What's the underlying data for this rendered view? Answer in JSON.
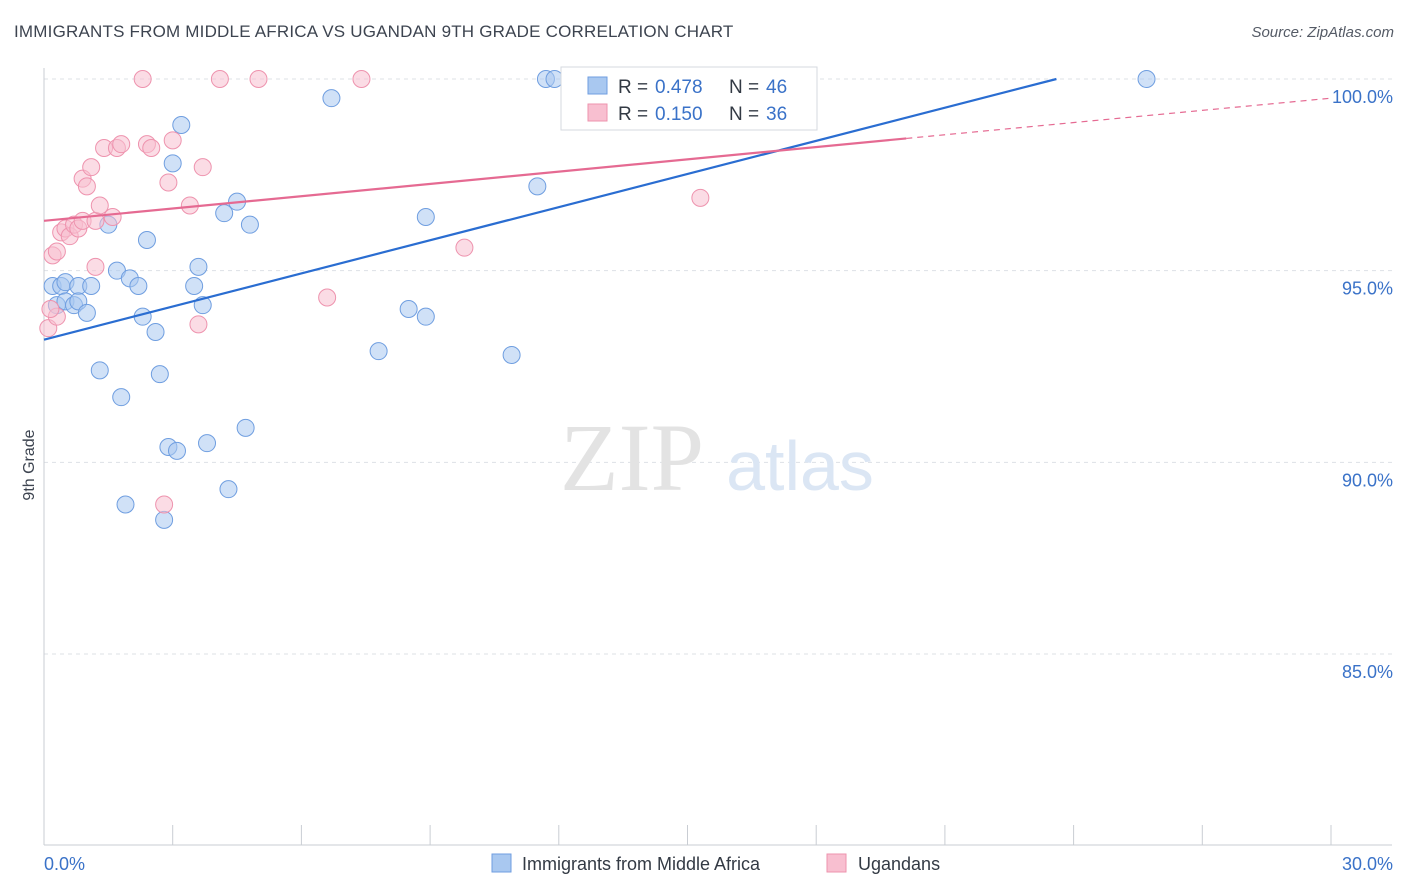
{
  "title": "IMMIGRANTS FROM MIDDLE AFRICA VS UGANDAN 9TH GRADE CORRELATION CHART",
  "source": "Source: ZipAtlas.com",
  "watermark": {
    "zip": "ZIP",
    "atlas": "atlas"
  },
  "colors": {
    "blue": "#a9c8f0",
    "blue_stroke": "#6f9ee0",
    "blue_line": "#2a6dd1",
    "pink": "#f8bfd0",
    "pink_stroke": "#ee93ae",
    "pink_line": "#e56a92",
    "value_text": "#3a72c8",
    "grid": "#dde1e6"
  },
  "legend_stats": {
    "blue_r_label": "R = ",
    "blue_r": "0.478",
    "blue_n_label": "N = ",
    "blue_n": "46",
    "pink_r_label": "R = ",
    "pink_r": "0.150",
    "pink_n_label": "N = ",
    "pink_n": "36"
  },
  "chart_data": {
    "type": "scatter",
    "title": "IMMIGRANTS FROM MIDDLE AFRICA VS UGANDAN 9TH GRADE CORRELATION CHART",
    "xlabel": "",
    "ylabel": "9th Grade",
    "xlim": [
      0,
      30
    ],
    "ylim": [
      80.5,
      100.5
    ],
    "x_tick_labels": [
      "0.0%",
      "30.0%"
    ],
    "y_ticks": [
      85,
      90,
      95,
      100
    ],
    "y_tick_labels": [
      "85.0%",
      "90.0%",
      "95.0%",
      "100.0%"
    ],
    "grid": true,
    "legend_position": "bottom-center",
    "series": [
      {
        "name": "Immigrants from Middle Africa",
        "color": "#a9c8f0",
        "r": 0.478,
        "n": 46,
        "trend": {
          "x0": 0,
          "y0": 93.2,
          "x1": 23.6,
          "y1": 100.0,
          "dashed_to": null
        },
        "points": [
          [
            0.2,
            94.6
          ],
          [
            0.3,
            94.1
          ],
          [
            0.4,
            94.6
          ],
          [
            0.5,
            94.7
          ],
          [
            0.5,
            94.2
          ],
          [
            0.7,
            94.1
          ],
          [
            0.8,
            94.6
          ],
          [
            0.8,
            94.2
          ],
          [
            1.0,
            93.9
          ],
          [
            1.1,
            94.6
          ],
          [
            1.3,
            92.4
          ],
          [
            1.5,
            96.2
          ],
          [
            1.7,
            95.0
          ],
          [
            1.8,
            91.7
          ],
          [
            1.9,
            88.9
          ],
          [
            2.0,
            94.8
          ],
          [
            2.2,
            94.6
          ],
          [
            2.3,
            93.8
          ],
          [
            2.4,
            95.8
          ],
          [
            2.6,
            93.4
          ],
          [
            2.7,
            92.3
          ],
          [
            2.8,
            88.5
          ],
          [
            2.9,
            90.4
          ],
          [
            3.0,
            97.8
          ],
          [
            3.1,
            90.3
          ],
          [
            3.2,
            98.8
          ],
          [
            3.5,
            94.6
          ],
          [
            3.6,
            95.1
          ],
          [
            3.7,
            94.1
          ],
          [
            3.8,
            90.5
          ],
          [
            4.2,
            96.5
          ],
          [
            4.3,
            89.3
          ],
          [
            4.5,
            96.8
          ],
          [
            4.7,
            90.9
          ],
          [
            4.8,
            96.2
          ],
          [
            6.7,
            99.5
          ],
          [
            7.8,
            92.9
          ],
          [
            8.5,
            94.0
          ],
          [
            8.9,
            93.8
          ],
          [
            8.9,
            96.4
          ],
          [
            10.9,
            92.8
          ],
          [
            11.5,
            97.2
          ],
          [
            11.7,
            100.0
          ],
          [
            11.9,
            100.0
          ],
          [
            14.6,
            98.9
          ],
          [
            25.7,
            100.0
          ]
        ]
      },
      {
        "name": "Ugandans",
        "color": "#f8bfd0",
        "r": 0.15,
        "n": 36,
        "trend": {
          "x0": 0,
          "y0": 96.3,
          "x1": 20.1,
          "y1": 98.45,
          "dashed_to": {
            "x": 30,
            "y": 99.5
          }
        },
        "points": [
          [
            0.1,
            93.5
          ],
          [
            0.2,
            95.4
          ],
          [
            0.3,
            95.5
          ],
          [
            0.3,
            93.8
          ],
          [
            0.4,
            96.0
          ],
          [
            0.5,
            96.1
          ],
          [
            0.6,
            95.9
          ],
          [
            0.7,
            96.2
          ],
          [
            0.8,
            96.1
          ],
          [
            0.9,
            96.3
          ],
          [
            0.9,
            97.4
          ],
          [
            1.0,
            97.2
          ],
          [
            1.1,
            97.7
          ],
          [
            1.2,
            96.3
          ],
          [
            1.2,
            95.1
          ],
          [
            1.3,
            96.7
          ],
          [
            1.4,
            98.2
          ],
          [
            1.6,
            96.4
          ],
          [
            1.7,
            98.2
          ],
          [
            1.8,
            98.3
          ],
          [
            2.3,
            100.0
          ],
          [
            2.4,
            98.3
          ],
          [
            2.5,
            98.2
          ],
          [
            2.8,
            88.9
          ],
          [
            2.9,
            97.3
          ],
          [
            3.0,
            98.4
          ],
          [
            3.4,
            96.7
          ],
          [
            3.6,
            93.6
          ],
          [
            3.7,
            97.7
          ],
          [
            4.1,
            100.0
          ],
          [
            5.0,
            100.0
          ],
          [
            6.6,
            94.3
          ],
          [
            7.4,
            100.0
          ],
          [
            9.8,
            95.6
          ],
          [
            15.3,
            96.9
          ],
          [
            0.15,
            94.0
          ]
        ]
      }
    ]
  }
}
